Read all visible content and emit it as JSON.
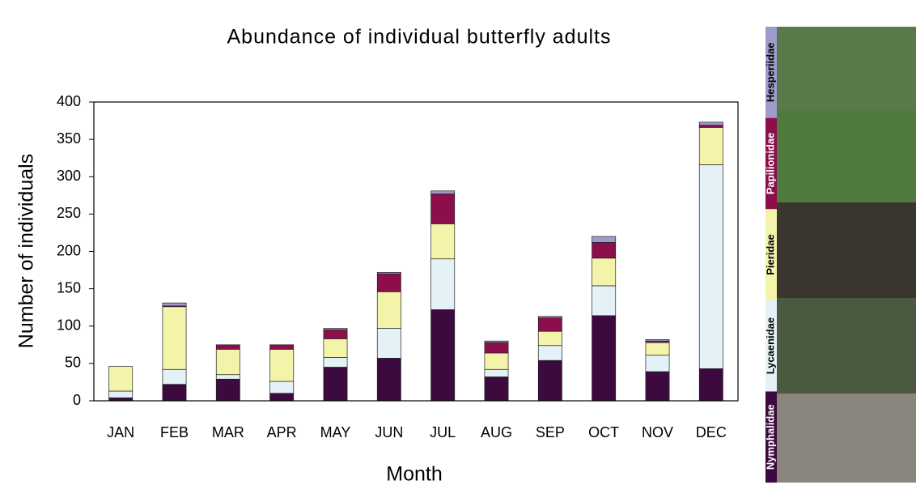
{
  "chart_data": {
    "type": "stacked_bar",
    "title": "Abundance of individual butterfly adults",
    "x_label": "Month",
    "y_label": "Number of individuals",
    "categories": [
      "JAN",
      "FEB",
      "MAR",
      "APR",
      "MAY",
      "JUN",
      "JUL",
      "AUG",
      "SEP",
      "OCT",
      "NOV",
      "DEC"
    ],
    "series": [
      {
        "name": "Nymphalidae",
        "color": "#3d0a40",
        "values": [
          4,
          22,
          29,
          10,
          45,
          57,
          122,
          32,
          54,
          114,
          39,
          43
        ]
      },
      {
        "name": "Lycaenidae",
        "color": "#e4f1f6",
        "values": [
          9,
          20,
          6,
          16,
          13,
          40,
          68,
          10,
          20,
          40,
          22,
          273
        ]
      },
      {
        "name": "Pieridae",
        "color": "#f3f3aa",
        "values": [
          33,
          84,
          34,
          43,
          25,
          49,
          47,
          22,
          19,
          37,
          17,
          50
        ]
      },
      {
        "name": "Papilionidae",
        "color": "#8c0f4c",
        "values": [
          0,
          1,
          5,
          5,
          12,
          24,
          40,
          14,
          18,
          21,
          2,
          3
        ]
      },
      {
        "name": "Hesperiidae",
        "color": "#9c9ccc",
        "values": [
          0,
          4,
          1,
          1,
          2,
          2,
          4,
          2,
          2,
          8,
          2,
          4
        ]
      }
    ],
    "ylim": [
      0,
      400
    ],
    "yticks": [
      0,
      50,
      100,
      150,
      200,
      250,
      300,
      350,
      400
    ]
  }
}
